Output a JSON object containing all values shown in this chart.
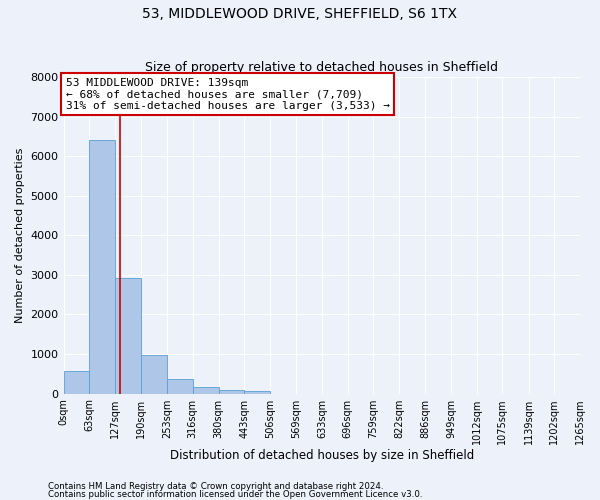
{
  "title1": "53, MIDDLEWOOD DRIVE, SHEFFIELD, S6 1TX",
  "title2": "Size of property relative to detached houses in Sheffield",
  "xlabel": "Distribution of detached houses by size in Sheffield",
  "ylabel": "Number of detached properties",
  "bar_edges": [
    0,
    63,
    127,
    190,
    253,
    316,
    380,
    443,
    506,
    569,
    633,
    696,
    759,
    822,
    886,
    949,
    1012,
    1075,
    1139,
    1202,
    1265
  ],
  "bar_heights": [
    580,
    6400,
    2920,
    970,
    360,
    155,
    100,
    60,
    0,
    0,
    0,
    0,
    0,
    0,
    0,
    0,
    0,
    0,
    0,
    0
  ],
  "bar_color": "#aec6e8",
  "bar_edge_color": "#5a9fd4",
  "property_size": 139,
  "property_line_color": "#cc0000",
  "annotation_line1": "53 MIDDLEWOOD DRIVE: 139sqm",
  "annotation_line2": "← 68% of detached houses are smaller (7,709)",
  "annotation_line3": "31% of semi-detached houses are larger (3,533) →",
  "annotation_box_color": "#ffffff",
  "annotation_box_edge_color": "#cc0000",
  "ylim": [
    0,
    8000
  ],
  "yticks": [
    0,
    1000,
    2000,
    3000,
    4000,
    5000,
    6000,
    7000,
    8000
  ],
  "footer_line1": "Contains HM Land Registry data © Crown copyright and database right 2024.",
  "footer_line2": "Contains public sector information licensed under the Open Government Licence v3.0.",
  "bg_color": "#edf1f9",
  "axes_bg_color": "#edf1f9",
  "grid_color": "#ffffff",
  "title1_fontsize": 10,
  "title2_fontsize": 9,
  "xlabel_fontsize": 8.5,
  "ylabel_fontsize": 8,
  "annotation_fontsize": 8,
  "tick_fontsize": 7,
  "ytick_fontsize": 8
}
